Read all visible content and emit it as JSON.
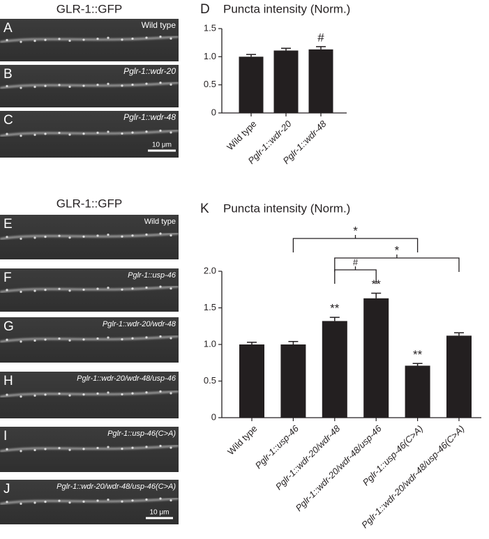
{
  "images": {
    "top": {
      "title": "GLR-1::GFP",
      "panels": [
        {
          "letter": "A",
          "label": "Wild type"
        },
        {
          "letter": "B",
          "label": "Pglr-1::wdr-20"
        },
        {
          "letter": "C",
          "label": "Pglr-1::wdr-48"
        }
      ],
      "scale_bar": "10 μm"
    },
    "bottom": {
      "title": "GLR-1::GFP",
      "panels": [
        {
          "letter": "E",
          "label": "Wild type"
        },
        {
          "letter": "F",
          "label": "Pglr-1::usp-46"
        },
        {
          "letter": "G",
          "label": "Pglr-1::wdr-20/wdr-48"
        },
        {
          "letter": "H",
          "label": "Pglr-1::wdr-20/wdr-48/usp-46"
        },
        {
          "letter": "I",
          "label": "Pglr-1::usp-46(C>A)"
        },
        {
          "letter": "J",
          "label": "Pglr-1::wdr-20/wdr-48/usp-46(C>A)"
        }
      ],
      "scale_bar": "10 μm"
    }
  },
  "chart_data": [
    {
      "type": "bar",
      "panel_letter": "D",
      "title": "Puncta intensity (Norm.)",
      "categories": [
        "Wild type",
        "Pglr-1::wdr-20",
        "Pglr-1::wdr-48"
      ],
      "values": [
        1.0,
        1.11,
        1.13
      ],
      "errors": [
        0.04,
        0.04,
        0.05
      ],
      "significance": [
        null,
        null,
        "#"
      ],
      "color": "#231f20",
      "ylim": [
        0,
        1.5
      ],
      "yticks": [
        0,
        0.5,
        {
          "value": 1,
          "label": "1.0"
        },
        1.5
      ]
    },
    {
      "type": "bar",
      "panel_letter": "K",
      "title": "Puncta intensity (Norm.)",
      "categories": [
        "Wild type",
        "Pglr-1::usp-46",
        "Pglr-1::wdr-20/wdr-48",
        "Pglr-1::wdr-20/wdr-48/usp-46",
        "Pglr-1::usp-46(C>A)",
        "Pglr-1::wdr-20/wdr-48/usp-46(C>A)"
      ],
      "values": [
        1.0,
        1.0,
        1.32,
        1.63,
        0.71,
        1.12
      ],
      "errors": [
        0.03,
        0.04,
        0.05,
        0.07,
        0.03,
        0.04
      ],
      "significance": [
        null,
        null,
        "**",
        "**",
        "**",
        null
      ],
      "brackets": [
        {
          "text": "*"
        },
        {
          "text": "*"
        },
        {
          "text": "#"
        }
      ],
      "color": "#231f20",
      "ylim": [
        0,
        2
      ],
      "yticks": [
        0,
        0.5,
        {
          "value": 1,
          "label": "1.0"
        },
        1.5,
        {
          "value": 2,
          "label": "2.0"
        }
      ]
    }
  ]
}
